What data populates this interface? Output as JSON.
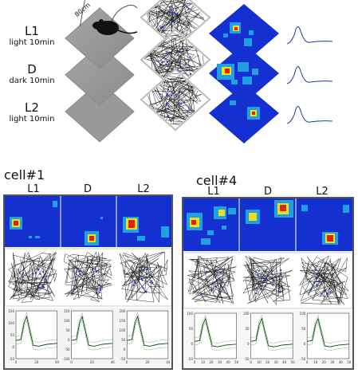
{
  "experiment": {
    "arena_size_label": "80cm",
    "conditions": [
      {
        "name": "L1",
        "subtitle": "light 10min"
      },
      {
        "name": "D",
        "subtitle": "dark 10min"
      },
      {
        "name": "L2",
        "subtitle": "light 10min"
      }
    ]
  },
  "cells": [
    {
      "title": "cell#1",
      "columns": [
        "L1",
        "D",
        "L2"
      ],
      "waveform_axes": [
        {
          "yticks": [
            "150",
            "100",
            "50",
            "0",
            "-50"
          ],
          "xticks": [
            "0",
            "20",
            "40"
          ]
        },
        {
          "yticks": [
            "150",
            "100",
            "50",
            "0",
            "-50",
            "-100"
          ],
          "xticks": [
            "0",
            "20",
            "40"
          ]
        },
        {
          "yticks": [
            "200",
            "150",
            "100",
            "50",
            "0",
            "-50"
          ],
          "xticks": [
            "0",
            "20",
            "40"
          ]
        }
      ]
    },
    {
      "title": "cell#4",
      "columns": [
        "L1",
        "D",
        "L2"
      ],
      "waveform_axes": [
        {
          "yticks": [
            "100",
            "50",
            "0",
            "-50"
          ],
          "xticks": [
            "0",
            "10",
            "20",
            "30",
            "40",
            "50"
          ]
        },
        {
          "yticks": [
            "100",
            "50",
            "0",
            "-50"
          ],
          "xticks": [
            "0",
            "10",
            "20",
            "30",
            "40",
            "50"
          ]
        },
        {
          "yticks": [
            "100",
            "50",
            "0",
            "-50"
          ],
          "xticks": [
            "0",
            "10",
            "20",
            "30",
            "40",
            "50"
          ]
        }
      ]
    }
  ],
  "colors": {
    "map_background": "#1530d0",
    "map_low": "#20a0e0",
    "map_mid": "#e8e020",
    "map_high": "#e02010",
    "path": "#111111",
    "spike": "#2030c0",
    "waveform_top": "#1a3a9a",
    "waveform_mean": "#0b4a10",
    "waveform_sd": "#3a8a3a"
  }
}
